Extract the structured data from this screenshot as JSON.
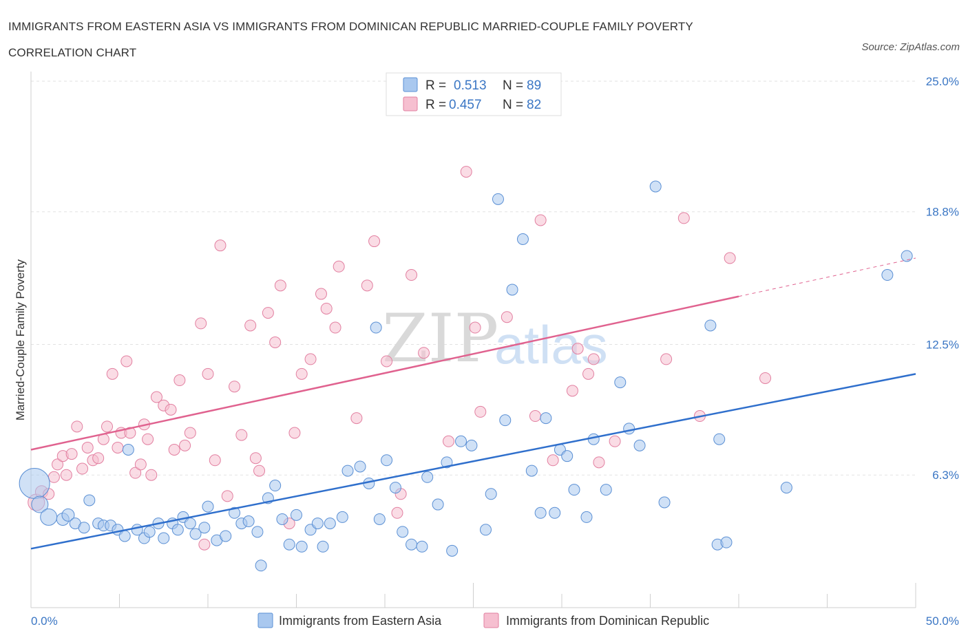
{
  "title": "IMMIGRANTS FROM EASTERN ASIA VS IMMIGRANTS FROM DOMINICAN REPUBLIC MARRIED-COUPLE FAMILY POVERTY CORRELATION CHART",
  "source": "Source: ZipAtlas.com",
  "watermark": {
    "zip": "ZIP",
    "atlas": "atlas"
  },
  "chart_data": {
    "type": "scatter",
    "title": "IMMIGRANTS FROM EASTERN ASIA VS IMMIGRANTS FROM DOMINICAN REPUBLIC MARRIED-COUPLE FAMILY POVERTY CORRELATION CHART",
    "xlabel": "",
    "ylabel": "Married-Couple Family Poverty",
    "xlim": [
      0,
      50
    ],
    "ylim": [
      0,
      25
    ],
    "x_tick_labels": [
      {
        "value": 0,
        "label": "0.0%"
      },
      {
        "value": 50,
        "label": "50.0%"
      }
    ],
    "y_tick_labels": [
      {
        "value": 6.3,
        "label": "6.3%"
      },
      {
        "value": 12.5,
        "label": "12.5%"
      },
      {
        "value": 18.8,
        "label": "18.8%"
      },
      {
        "value": 25.0,
        "label": "25.0%"
      }
    ],
    "legend": [
      {
        "name": "Immigrants from Eastern Asia",
        "r_label": "R =",
        "r": "0.513",
        "n_label": "N =",
        "n": "89"
      },
      {
        "name": "Immigrants from Dominican Republic",
        "r_label": "R =",
        "r": "0.457",
        "n_label": "N =",
        "n": "82"
      }
    ],
    "colors": {
      "blue_fill": "#a9c8ef",
      "blue_stroke": "#5a8fd4",
      "blue_line": "#2f6fcc",
      "pink_fill": "#f6bfd0",
      "pink_stroke": "#e27fa0",
      "pink_line": "#e0628f"
    },
    "series": [
      {
        "name": "Immigrants from Eastern Asia",
        "trend": {
          "x0": 0,
          "y0": 2.8,
          "x1": 50,
          "y1": 11.1
        },
        "points": [
          [
            0.2,
            5.9,
            22
          ],
          [
            0.5,
            4.9,
            12
          ],
          [
            1.0,
            4.3,
            12
          ],
          [
            1.8,
            4.2,
            9
          ],
          [
            2.1,
            4.4,
            9
          ],
          [
            2.5,
            4.0,
            8
          ],
          [
            3.0,
            3.8,
            8
          ],
          [
            3.3,
            5.1,
            8
          ],
          [
            3.8,
            4.0,
            8
          ],
          [
            4.1,
            3.9,
            8
          ],
          [
            4.5,
            3.9,
            8
          ],
          [
            4.9,
            3.7,
            8
          ],
          [
            5.3,
            3.4,
            8
          ],
          [
            5.5,
            7.5,
            8
          ],
          [
            6.0,
            3.7,
            8
          ],
          [
            6.4,
            3.3,
            8
          ],
          [
            6.7,
            3.6,
            8
          ],
          [
            7.2,
            4.0,
            8
          ],
          [
            7.5,
            3.3,
            8
          ],
          [
            8.0,
            4.0,
            8
          ],
          [
            8.3,
            3.7,
            8
          ],
          [
            8.6,
            4.3,
            8
          ],
          [
            9.0,
            4.0,
            8
          ],
          [
            9.3,
            3.5,
            8
          ],
          [
            9.8,
            3.8,
            8
          ],
          [
            10.0,
            4.8,
            8
          ],
          [
            10.5,
            3.2,
            8
          ],
          [
            11.0,
            3.4,
            8
          ],
          [
            11.5,
            4.5,
            8
          ],
          [
            11.9,
            4.0,
            8
          ],
          [
            12.3,
            4.1,
            8
          ],
          [
            12.8,
            3.6,
            8
          ],
          [
            13.0,
            2.0,
            8
          ],
          [
            13.4,
            5.2,
            8
          ],
          [
            13.8,
            5.8,
            8
          ],
          [
            14.2,
            4.2,
            8
          ],
          [
            14.6,
            3.0,
            8
          ],
          [
            15.0,
            4.4,
            8
          ],
          [
            15.3,
            2.9,
            8
          ],
          [
            15.8,
            3.7,
            8
          ],
          [
            16.2,
            4.0,
            8
          ],
          [
            16.5,
            2.9,
            8
          ],
          [
            16.9,
            4.0,
            8
          ],
          [
            17.6,
            4.3,
            8
          ],
          [
            17.9,
            6.5,
            8
          ],
          [
            18.6,
            6.7,
            8
          ],
          [
            19.1,
            5.9,
            8
          ],
          [
            19.5,
            13.3,
            8
          ],
          [
            19.7,
            4.2,
            8
          ],
          [
            20.1,
            7.0,
            8
          ],
          [
            20.6,
            5.7,
            8
          ],
          [
            21.0,
            3.6,
            8
          ],
          [
            21.5,
            3.0,
            8
          ],
          [
            22.1,
            2.9,
            8
          ],
          [
            22.4,
            6.2,
            8
          ],
          [
            23.0,
            4.9,
            8
          ],
          [
            23.5,
            6.9,
            8
          ],
          [
            23.8,
            2.7,
            8
          ],
          [
            24.3,
            7.9,
            8
          ],
          [
            24.9,
            7.7,
            8
          ],
          [
            25.7,
            3.7,
            8
          ],
          [
            26.0,
            5.4,
            8
          ],
          [
            26.4,
            19.4,
            8
          ],
          [
            26.8,
            8.9,
            8
          ],
          [
            27.2,
            15.1,
            8
          ],
          [
            27.8,
            17.5,
            8
          ],
          [
            28.3,
            6.5,
            8
          ],
          [
            28.8,
            4.5,
            8
          ],
          [
            29.1,
            9.0,
            8
          ],
          [
            29.6,
            4.5,
            8
          ],
          [
            29.9,
            7.5,
            8
          ],
          [
            30.3,
            7.2,
            8
          ],
          [
            30.7,
            5.6,
            8
          ],
          [
            31.4,
            4.3,
            8
          ],
          [
            31.8,
            8.0,
            8
          ],
          [
            32.5,
            5.6,
            8
          ],
          [
            33.3,
            10.7,
            8
          ],
          [
            33.8,
            8.5,
            8
          ],
          [
            34.4,
            7.7,
            8
          ],
          [
            35.3,
            20.0,
            8
          ],
          [
            35.8,
            5.0,
            8
          ],
          [
            38.4,
            13.4,
            8
          ],
          [
            38.8,
            3.0,
            8
          ],
          [
            38.9,
            8.0,
            8
          ],
          [
            39.3,
            3.1,
            8
          ],
          [
            42.7,
            5.7,
            8
          ],
          [
            48.4,
            15.8,
            8
          ],
          [
            49.5,
            16.7,
            8
          ]
        ]
      },
      {
        "name": "Immigrants from Dominican Republic",
        "trend": {
          "x0": 0,
          "y0": 7.5,
          "x1": 50,
          "y1": 16.6,
          "solid_until_x": 40
        },
        "points": [
          [
            0.3,
            5.0,
            12
          ],
          [
            0.6,
            5.5,
            9
          ],
          [
            1.0,
            5.4,
            8
          ],
          [
            1.3,
            6.2,
            8
          ],
          [
            1.5,
            6.8,
            8
          ],
          [
            1.8,
            7.2,
            8
          ],
          [
            2.0,
            6.3,
            8
          ],
          [
            2.3,
            7.3,
            8
          ],
          [
            2.6,
            8.6,
            8
          ],
          [
            2.9,
            6.6,
            8
          ],
          [
            3.2,
            7.6,
            8
          ],
          [
            3.5,
            7.0,
            8
          ],
          [
            3.8,
            7.1,
            8
          ],
          [
            4.1,
            8.0,
            8
          ],
          [
            4.3,
            8.6,
            8
          ],
          [
            4.6,
            11.1,
            8
          ],
          [
            4.9,
            7.6,
            8
          ],
          [
            5.1,
            8.3,
            8
          ],
          [
            5.4,
            11.7,
            8
          ],
          [
            5.6,
            8.3,
            8
          ],
          [
            5.9,
            6.4,
            8
          ],
          [
            6.2,
            6.8,
            8
          ],
          [
            6.4,
            8.7,
            8
          ],
          [
            6.6,
            8.0,
            8
          ],
          [
            6.8,
            6.3,
            8
          ],
          [
            7.1,
            10.0,
            8
          ],
          [
            7.5,
            9.6,
            8
          ],
          [
            7.9,
            9.4,
            8
          ],
          [
            8.1,
            7.5,
            8
          ],
          [
            8.4,
            10.8,
            8
          ],
          [
            8.7,
            7.7,
            8
          ],
          [
            9.0,
            8.3,
            8
          ],
          [
            9.6,
            13.5,
            8
          ],
          [
            9.8,
            3.0,
            8
          ],
          [
            10.0,
            11.1,
            8
          ],
          [
            10.4,
            7.0,
            8
          ],
          [
            10.7,
            17.2,
            8
          ],
          [
            11.1,
            5.3,
            8
          ],
          [
            11.5,
            10.5,
            8
          ],
          [
            11.9,
            8.2,
            8
          ],
          [
            12.4,
            13.4,
            8
          ],
          [
            12.7,
            7.1,
            8
          ],
          [
            12.9,
            6.5,
            8
          ],
          [
            13.4,
            14.0,
            8
          ],
          [
            13.8,
            12.6,
            8
          ],
          [
            14.1,
            15.3,
            8
          ],
          [
            14.6,
            4.0,
            8
          ],
          [
            14.9,
            8.3,
            8
          ],
          [
            15.3,
            11.1,
            8
          ],
          [
            15.8,
            11.8,
            8
          ],
          [
            16.4,
            14.9,
            8
          ],
          [
            16.7,
            14.2,
            8
          ],
          [
            17.2,
            13.3,
            8
          ],
          [
            17.4,
            16.2,
            8
          ],
          [
            18.4,
            9.0,
            8
          ],
          [
            19.0,
            15.3,
            8
          ],
          [
            19.4,
            17.4,
            8
          ],
          [
            20.1,
            11.7,
            8
          ],
          [
            20.7,
            4.5,
            8
          ],
          [
            20.9,
            5.4,
            8
          ],
          [
            21.5,
            15.8,
            8
          ],
          [
            22.2,
            12.1,
            8
          ],
          [
            23.6,
            7.9,
            8
          ],
          [
            24.6,
            20.7,
            8
          ],
          [
            25.1,
            13.3,
            8
          ],
          [
            25.4,
            9.3,
            8
          ],
          [
            26.9,
            13.8,
            8
          ],
          [
            28.5,
            9.1,
            8
          ],
          [
            28.8,
            18.4,
            8
          ],
          [
            29.5,
            7.0,
            8
          ],
          [
            30.6,
            10.3,
            8
          ],
          [
            30.9,
            12.3,
            8
          ],
          [
            31.5,
            11.1,
            8
          ],
          [
            31.8,
            11.8,
            8
          ],
          [
            32.1,
            6.9,
            8
          ],
          [
            33.0,
            7.9,
            8
          ],
          [
            35.9,
            11.8,
            8
          ],
          [
            36.9,
            18.5,
            8
          ],
          [
            37.8,
            9.1,
            8
          ],
          [
            39.5,
            16.6,
            8
          ],
          [
            41.5,
            10.9,
            8
          ]
        ]
      }
    ]
  }
}
